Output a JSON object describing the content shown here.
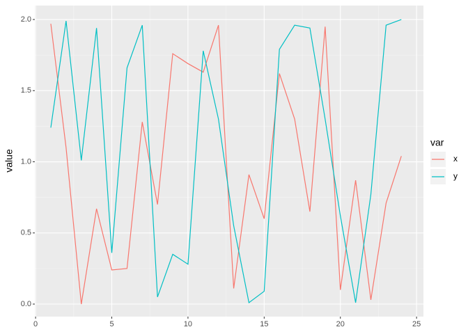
{
  "chart_data": {
    "type": "line",
    "x": [
      1,
      2,
      3,
      4,
      5,
      6,
      7,
      8,
      9,
      10,
      11,
      12,
      13,
      14,
      15,
      16,
      17,
      18,
      19,
      20,
      21,
      22,
      23,
      24
    ],
    "series": [
      {
        "name": "x",
        "color": "#f8766d",
        "values": [
          1.97,
          1.1,
          0.0,
          0.67,
          0.24,
          0.25,
          1.28,
          0.7,
          1.76,
          1.69,
          1.63,
          1.96,
          0.11,
          0.91,
          0.6,
          1.62,
          1.3,
          0.65,
          1.95,
          0.1,
          0.87,
          0.03,
          0.71,
          1.04
        ]
      },
      {
        "name": "y",
        "color": "#00bfc4",
        "values": [
          1.24,
          1.99,
          1.01,
          1.94,
          0.36,
          1.66,
          1.96,
          0.05,
          0.35,
          0.28,
          1.78,
          1.3,
          0.55,
          0.01,
          0.09,
          1.79,
          1.96,
          1.94,
          1.3,
          0.62,
          0.01,
          0.77,
          1.96,
          2.0
        ]
      }
    ],
    "ylabel": "value",
    "legend_title": "var",
    "xlim": [
      -0.05,
      25.45
    ],
    "ylim": [
      -0.088,
      2.098
    ],
    "xticks": [
      0,
      5,
      10,
      15,
      20,
      25
    ],
    "yticks": [
      {
        "value": 0,
        "label": "0.0"
      },
      {
        "value": 0.5,
        "label": "0.5"
      },
      {
        "value": 1,
        "label": "1.0"
      },
      {
        "value": 1.5,
        "label": "1.5"
      },
      {
        "value": 2,
        "label": "2.0"
      }
    ],
    "grid": true,
    "legend": "right"
  }
}
